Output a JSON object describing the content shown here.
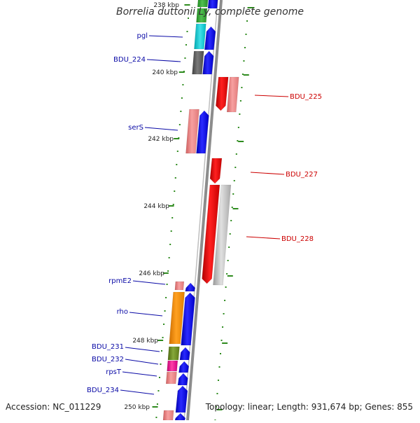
{
  "title": "Borrelia duttonii Ly, complete genome",
  "accession": "Accession: NC_011229",
  "summary": "Topology: linear; Length: 931,674 bp; Genes: 855",
  "colors": {
    "backbone": "#8c8c8c",
    "tick": "#2e8b1e",
    "left_label": "#0a0aa6",
    "right_label": "#cc0000",
    "blue_gene": "#0000ee",
    "red_gene": "#ee0000",
    "pink_gene": "#f08080",
    "gray_gene": "#bdbdbd"
  },
  "scale_labels": [
    "238 kbp",
    "240 kbp",
    "242 kbp",
    "244 kbp",
    "246 kbp",
    "248 kbp",
    "250 kbp"
  ],
  "left_genes": [
    {
      "name": "pgl"
    },
    {
      "name": "BDU_224"
    },
    {
      "name": "serS"
    },
    {
      "name": "rpmE2"
    },
    {
      "name": "rho"
    },
    {
      "name": "BDU_231"
    },
    {
      "name": "BDU_232"
    },
    {
      "name": "rpsT"
    },
    {
      "name": "BDU_234"
    }
  ],
  "right_genes": [
    {
      "name": "BDU_225"
    },
    {
      "name": "BDU_227"
    },
    {
      "name": "BDU_228"
    }
  ]
}
